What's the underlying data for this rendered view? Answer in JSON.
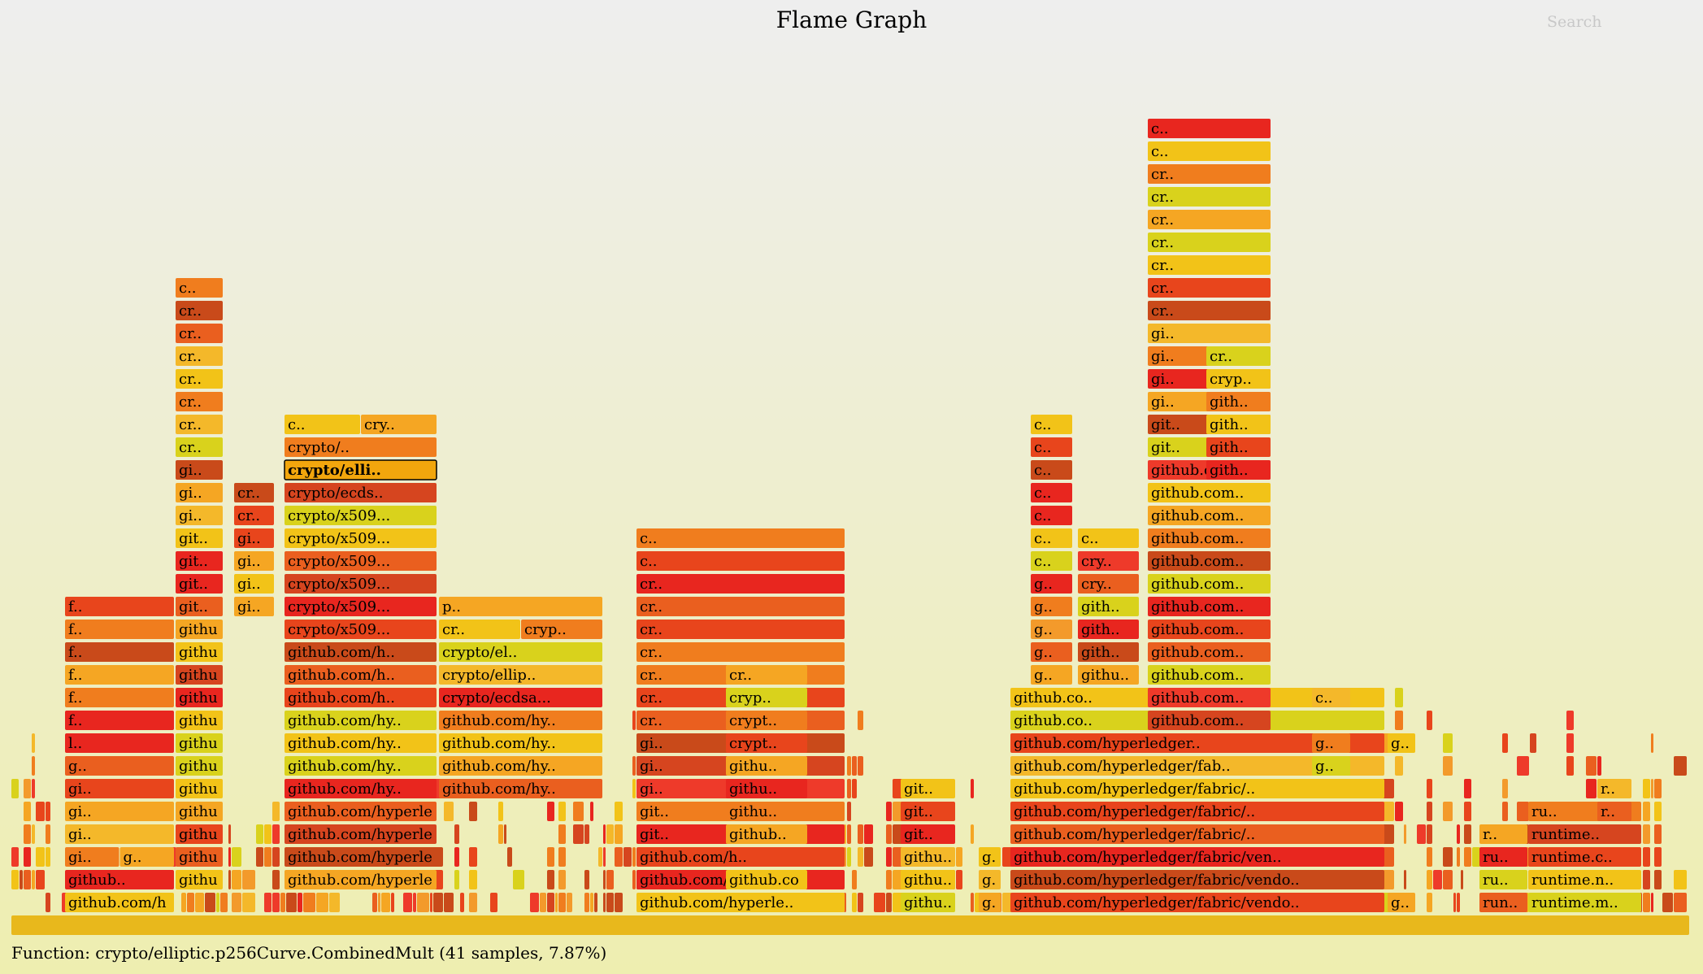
{
  "title": "Flame Graph",
  "search_label": "Search",
  "details": "Function: crypto/elliptic.p256Curve.CombinedMult (41 samples, 7.87%)",
  "chart_data": {
    "type": "flame",
    "palette": [
      "#e8451c",
      "#f07d1e",
      "#f5a623",
      "#f2c318",
      "#d9d21c",
      "#e8261f",
      "#d6451f",
      "#ea5f1f",
      "#f4b82a",
      "#c94a1a",
      "#ee3a2a",
      "#f39a2b"
    ],
    "highlight_color": "#f2a60d",
    "root": {
      "label": "",
      "color": "#e8b81c"
    },
    "frames": [
      {
        "label": "github.com/hyperledger/fabric/core/chaincode/shim.(*H..",
        "col": 0,
        "row": 0,
        "c": 3
      },
      {
        "label": "github..",
        "col": 0,
        "row": 1,
        "c": 5
      },
      {
        "label": "gi..",
        "col": 0,
        "row": 2,
        "c": 1
      },
      {
        "label": "g..",
        "col": 0,
        "row": 2,
        "c": 2
      },
      {
        "label": "gi..",
        "col": 0,
        "row": 3,
        "c": 8
      },
      {
        "label": "gi..",
        "col": 0,
        "row": 4,
        "c": 2
      },
      {
        "label": "gi..",
        "col": 0,
        "row": 5,
        "c": 0
      },
      {
        "label": "g..",
        "col": 0,
        "row": 6,
        "c": 7
      },
      {
        "label": "l..",
        "col": 0,
        "row": 7,
        "c": 5
      },
      {
        "label": "f..",
        "col": 0,
        "row": 8,
        "c": 5
      },
      {
        "label": "f..",
        "col": 0,
        "row": 9,
        "c": 1
      },
      {
        "label": "f..",
        "col": 0,
        "row": 10,
        "c": 2
      },
      {
        "label": "f..",
        "col": 0,
        "row": 11,
        "c": 9
      },
      {
        "label": "f..",
        "col": 0,
        "row": 12,
        "c": 1
      },
      {
        "label": "f..",
        "col": 0,
        "row": 13,
        "c": 0
      },
      {
        "label": "github.c..",
        "col": 1,
        "row": 1,
        "c": 3
      },
      {
        "label": "github.c..",
        "col": 1,
        "row": 2,
        "c": 7
      },
      {
        "label": "github.c..",
        "col": 1,
        "row": 3,
        "c": 0
      },
      {
        "label": "github.c..",
        "col": 1,
        "row": 4,
        "c": 2
      },
      {
        "label": "github.c..",
        "col": 1,
        "row": 5,
        "c": 3
      },
      {
        "label": "github.c..",
        "col": 1,
        "row": 6,
        "c": 4
      },
      {
        "label": "github.c..",
        "col": 1,
        "row": 7,
        "c": 4
      },
      {
        "label": "github.c..",
        "col": 1,
        "row": 8,
        "c": 3
      },
      {
        "label": "github.c..",
        "col": 1,
        "row": 9,
        "c": 5
      },
      {
        "label": "github.c..",
        "col": 1,
        "row": 10,
        "c": 6
      },
      {
        "label": "github.c..",
        "col": 1,
        "row": 11,
        "c": 3
      },
      {
        "label": "github.c..",
        "col": 1,
        "row": 12,
        "c": 2
      },
      {
        "label": "git..",
        "col": 1,
        "row": 13,
        "c": 7
      },
      {
        "label": "git..",
        "col": 1,
        "row": 14,
        "c": 5
      },
      {
        "label": "git..",
        "col": 1,
        "row": 15,
        "c": 5
      },
      {
        "label": "git..",
        "col": 1,
        "row": 16,
        "c": 3
      },
      {
        "label": "gi..",
        "col": 1,
        "row": 17,
        "c": 8
      },
      {
        "label": "gi..",
        "col": 1,
        "row": 18,
        "c": 2
      },
      {
        "label": "gi..",
        "col": 1,
        "row": 19,
        "c": 9
      },
      {
        "label": "cr..",
        "col": 1,
        "row": 20,
        "c": 4
      },
      {
        "label": "cr..",
        "col": 1,
        "row": 21,
        "c": 8
      },
      {
        "label": "cr..",
        "col": 1,
        "row": 22,
        "c": 1
      },
      {
        "label": "cr..",
        "col": 1,
        "row": 23,
        "c": 3
      },
      {
        "label": "cr..",
        "col": 1,
        "row": 24,
        "c": 8
      },
      {
        "label": "cr..",
        "col": 1,
        "row": 25,
        "c": 7
      },
      {
        "label": "cr..",
        "col": 1,
        "row": 26,
        "c": 9
      },
      {
        "label": "c..",
        "col": 1,
        "row": 27,
        "c": 1
      },
      {
        "label": "gi..",
        "col": 2,
        "row": 13,
        "c": 2
      },
      {
        "label": "gi..",
        "col": 2,
        "row": 14,
        "c": 3
      },
      {
        "label": "gi..",
        "col": 2,
        "row": 15,
        "c": 2
      },
      {
        "label": "gi..",
        "col": 2,
        "row": 16,
        "c": 0
      },
      {
        "label": "cr..",
        "col": 2,
        "row": 17,
        "c": 0
      },
      {
        "label": "cr..",
        "col": 2,
        "row": 18,
        "c": 9
      },
      {
        "label": "github.com/hyperledger/fabric/c..",
        "col": 3,
        "row": 1,
        "c": 2
      },
      {
        "label": "github.com/hyperledger/fabric/..",
        "col": 3,
        "row": 2,
        "c": 9
      },
      {
        "label": "github.com/hyperledger/fabric/..",
        "col": 3,
        "row": 3,
        "c": 6
      },
      {
        "label": "github.com/hyperledger/fabric/..",
        "col": 3,
        "row": 4,
        "c": 7
      },
      {
        "label": "github.com/hy..",
        "col": 3,
        "row": 5,
        "c": 5
      },
      {
        "label": "github.com/hy..",
        "col": 3,
        "row": 6,
        "c": 4
      },
      {
        "label": "github.com/hy..",
        "col": 3,
        "row": 7,
        "c": 3
      },
      {
        "label": "github.com/hy..",
        "col": 3,
        "row": 8,
        "c": 4
      },
      {
        "label": "github.com/h..",
        "col": 3,
        "row": 9,
        "c": 0
      },
      {
        "label": "github.com/h..",
        "col": 3,
        "row": 10,
        "c": 7
      },
      {
        "label": "github.com/h..",
        "col": 3,
        "row": 11,
        "c": 9
      },
      {
        "label": "crypto/x509...",
        "col": 3,
        "row": 12,
        "c": 0
      },
      {
        "label": "crypto/x509...",
        "col": 3,
        "row": 13,
        "c": 5
      },
      {
        "label": "crypto/x509...",
        "col": 3,
        "row": 14,
        "c": 6
      },
      {
        "label": "crypto/x509...",
        "col": 3,
        "row": 15,
        "c": 7
      },
      {
        "label": "crypto/x509...",
        "col": 3,
        "row": 16,
        "c": 3
      },
      {
        "label": "crypto/x509...",
        "col": 3,
        "row": 17,
        "c": 4
      },
      {
        "label": "crypto/ecds..",
        "col": 3,
        "row": 18,
        "c": 6
      },
      {
        "label": "crypto/elli..",
        "col": 3,
        "row": 19,
        "c": 2,
        "highlight": true
      },
      {
        "label": "crypto/..",
        "col": 3,
        "row": 20,
        "c": 1
      },
      {
        "label": "c..",
        "col": 3,
        "row": 21,
        "c": 3
      },
      {
        "label": "cry..",
        "col": 3,
        "row": 21,
        "c": 2
      },
      {
        "label": "github.com/hy..",
        "col": 4,
        "row": 5,
        "c": 7
      },
      {
        "label": "github.com/hy..",
        "col": 4,
        "row": 6,
        "c": 2
      },
      {
        "label": "github.com/hy..",
        "col": 4,
        "row": 7,
        "c": 3
      },
      {
        "label": "github.com/hy..",
        "col": 4,
        "row": 8,
        "c": 1
      },
      {
        "label": "crypto/ecdsa...",
        "col": 4,
        "row": 9,
        "c": 5
      },
      {
        "label": "crypto/ellip..",
        "col": 4,
        "row": 10,
        "c": 8
      },
      {
        "label": "crypto/el..",
        "col": 4,
        "row": 11,
        "c": 4
      },
      {
        "label": "cr..",
        "col": 4,
        "row": 12,
        "c": 3
      },
      {
        "label": "cryp..",
        "col": 4,
        "row": 12,
        "c": 1
      },
      {
        "label": "p..",
        "col": 4,
        "row": 13,
        "c": 2
      },
      {
        "label": "github.com/hyperle..",
        "col": 5,
        "row": 0,
        "c": 3
      },
      {
        "label": "github.com/hyperle..",
        "col": 5,
        "row": 1,
        "c": 5
      },
      {
        "label": "github.com/h..",
        "col": 5,
        "row": 2,
        "c": 0
      },
      {
        "label": "git..",
        "col": 5,
        "row": 3,
        "c": 5
      },
      {
        "label": "git..",
        "col": 5,
        "row": 4,
        "c": 1
      },
      {
        "label": "gi..",
        "col": 5,
        "row": 5,
        "c": 10
      },
      {
        "label": "gi..",
        "col": 5,
        "row": 6,
        "c": 6
      },
      {
        "label": "gi..",
        "col": 5,
        "row": 7,
        "c": 9
      },
      {
        "label": "cr..",
        "col": 5,
        "row": 8,
        "c": 7
      },
      {
        "label": "cr..",
        "col": 5,
        "row": 9,
        "c": 0
      },
      {
        "label": "cr..",
        "col": 5,
        "row": 10,
        "c": 1
      },
      {
        "label": "cr..",
        "col": 5,
        "row": 11,
        "c": 1
      },
      {
        "label": "cr..",
        "col": 5,
        "row": 12,
        "c": 0
      },
      {
        "label": "cr..",
        "col": 5,
        "row": 13,
        "c": 7
      },
      {
        "label": "cr..",
        "col": 5,
        "row": 14,
        "c": 5
      },
      {
        "label": "c..",
        "col": 5,
        "row": 15,
        "c": 0
      },
      {
        "label": "c..",
        "col": 5,
        "row": 16,
        "c": 1
      },
      {
        "label": "github.com/hyp..",
        "col": 6,
        "row": 1,
        "c": 3
      },
      {
        "label": "github..",
        "col": 6,
        "row": 3,
        "c": 2
      },
      {
        "label": "githu..",
        "col": 6,
        "row": 4,
        "c": 1
      },
      {
        "label": "githu..",
        "col": 6,
        "row": 5,
        "c": 5
      },
      {
        "label": "githu..",
        "col": 6,
        "row": 6,
        "c": 2
      },
      {
        "label": "crypt..",
        "col": 6,
        "row": 7,
        "c": 0
      },
      {
        "label": "crypt..",
        "col": 6,
        "row": 8,
        "c": 1
      },
      {
        "label": "cryp..",
        "col": 6,
        "row": 9,
        "c": 4
      },
      {
        "label": "cr..",
        "col": 6,
        "row": 10,
        "c": 2
      },
      {
        "label": "githu..",
        "col": 7,
        "row": 0,
        "c": 4
      },
      {
        "label": "githu..",
        "col": 7,
        "row": 1,
        "c": 3
      },
      {
        "label": "githu..",
        "col": 7,
        "row": 2,
        "c": 8
      },
      {
        "label": "git..",
        "col": 7,
        "row": 3,
        "c": 5
      },
      {
        "label": "git..",
        "col": 7,
        "row": 4,
        "c": 0
      },
      {
        "label": "git..",
        "col": 7,
        "row": 5,
        "c": 3
      },
      {
        "label": "g..",
        "col": 8,
        "row": 0,
        "c": 2
      },
      {
        "label": "g..",
        "col": 8,
        "row": 1,
        "c": 8
      },
      {
        "label": "g..",
        "col": 8,
        "row": 2,
        "c": 3
      },
      {
        "label": "github.com/hyperledger/fabric/vendo..",
        "col": 9,
        "row": 0,
        "c": 0
      },
      {
        "label": "github.com/hyperledger/fabric/vendo..",
        "col": 9,
        "row": 1,
        "c": 9
      },
      {
        "label": "github.com/hyperledger/fabric/ven..",
        "col": 9,
        "row": 2,
        "c": 5
      },
      {
        "label": "github.com/hyperledger/fabric/..",
        "col": 9,
        "row": 3,
        "c": 7
      },
      {
        "label": "github.com/hyperledger/fabric/..",
        "col": 9,
        "row": 4,
        "c": 0
      },
      {
        "label": "github.com/hyperledger/fabric/..",
        "col": 9,
        "row": 5,
        "c": 3
      },
      {
        "label": "github.com/hyperledger/fab..",
        "col": 9,
        "row": 6,
        "c": 8
      },
      {
        "label": "github.com/hyperledger..",
        "col": 9,
        "row": 7,
        "c": 0
      },
      {
        "label": "github.co..",
        "col": 9,
        "row": 8,
        "c": 4
      },
      {
        "label": "github.co..",
        "col": 9,
        "row": 9,
        "c": 3
      },
      {
        "label": "g..",
        "col": 10,
        "row": 10,
        "c": 2
      },
      {
        "label": "g..",
        "col": 10,
        "row": 11,
        "c": 7
      },
      {
        "label": "g..",
        "col": 10,
        "row": 12,
        "c": 11
      },
      {
        "label": "g..",
        "col": 10,
        "row": 13,
        "c": 1
      },
      {
        "label": "g..",
        "col": 10,
        "row": 14,
        "c": 5
      },
      {
        "label": "c..",
        "col": 10,
        "row": 15,
        "c": 4
      },
      {
        "label": "c..",
        "col": 10,
        "row": 16,
        "c": 3
      },
      {
        "label": "c..",
        "col": 10,
        "row": 17,
        "c": 5
      },
      {
        "label": "c..",
        "col": 10,
        "row": 18,
        "c": 5
      },
      {
        "label": "c..",
        "col": 10,
        "row": 19,
        "c": 9
      },
      {
        "label": "c..",
        "col": 10,
        "row": 20,
        "c": 0
      },
      {
        "label": "c..",
        "col": 10,
        "row": 21,
        "c": 3
      },
      {
        "label": "githu..",
        "col": 11,
        "row": 10,
        "c": 2
      },
      {
        "label": "gith..",
        "col": 11,
        "row": 11,
        "c": 9
      },
      {
        "label": "gith..",
        "col": 11,
        "row": 12,
        "c": 5
      },
      {
        "label": "gith..",
        "col": 11,
        "row": 13,
        "c": 4
      },
      {
        "label": "cry..",
        "col": 11,
        "row": 14,
        "c": 7
      },
      {
        "label": "cry..",
        "col": 11,
        "row": 15,
        "c": 10
      },
      {
        "label": "c..",
        "col": 11,
        "row": 16,
        "c": 3
      },
      {
        "label": "github.com..",
        "col": 12,
        "row": 8,
        "c": 6
      },
      {
        "label": "github.com..",
        "col": 12,
        "row": 9,
        "c": 10
      },
      {
        "label": "github.com..",
        "col": 12,
        "row": 10,
        "c": 4
      },
      {
        "label": "github.com..",
        "col": 12,
        "row": 11,
        "c": 7
      },
      {
        "label": "github.com..",
        "col": 12,
        "row": 12,
        "c": 0
      },
      {
        "label": "github.com..",
        "col": 12,
        "row": 13,
        "c": 5
      },
      {
        "label": "github.com..",
        "col": 12,
        "row": 14,
        "c": 4
      },
      {
        "label": "github.com..",
        "col": 12,
        "row": 15,
        "c": 9
      },
      {
        "label": "github.com..",
        "col": 12,
        "row": 16,
        "c": 1
      },
      {
        "label": "github.com..",
        "col": 12,
        "row": 17,
        "c": 2
      },
      {
        "label": "github.com..",
        "col": 12,
        "row": 18,
        "c": 3
      },
      {
        "label": "github.com..",
        "col": 12,
        "row": 19,
        "c": 10
      },
      {
        "label": "git..",
        "col": 12,
        "row": 20,
        "c": 4
      },
      {
        "label": "git..",
        "col": 12,
        "row": 21,
        "c": 9
      },
      {
        "label": "gi..",
        "col": 12,
        "row": 22,
        "c": 2
      },
      {
        "label": "gi..",
        "col": 12,
        "row": 23,
        "c": 5
      },
      {
        "label": "gi..",
        "col": 12,
        "row": 24,
        "c": 1
      },
      {
        "label": "gi..",
        "col": 12,
        "row": 25,
        "c": 8
      },
      {
        "label": "cr..",
        "col": 12,
        "row": 26,
        "c": 9
      },
      {
        "label": "cr..",
        "col": 12,
        "row": 27,
        "c": 0
      },
      {
        "label": "cr..",
        "col": 12,
        "row": 28,
        "c": 3
      },
      {
        "label": "cr..",
        "col": 12,
        "row": 29,
        "c": 4
      },
      {
        "label": "cr..",
        "col": 12,
        "row": 30,
        "c": 2
      },
      {
        "label": "cr..",
        "col": 12,
        "row": 31,
        "c": 4
      },
      {
        "label": "cr..",
        "col": 12,
        "row": 32,
        "c": 1
      },
      {
        "label": "c..",
        "col": 12,
        "row": 33,
        "c": 3
      },
      {
        "label": "c..",
        "col": 12,
        "row": 34,
        "c": 5
      },
      {
        "label": "gith..",
        "col": 13,
        "row": 19,
        "c": 5
      },
      {
        "label": "gith..",
        "col": 13,
        "row": 20,
        "c": 0
      },
      {
        "label": "gith..",
        "col": 13,
        "row": 21,
        "c": 3
      },
      {
        "label": "gith..",
        "col": 13,
        "row": 22,
        "c": 1
      },
      {
        "label": "cryp..",
        "col": 13,
        "row": 23,
        "c": 3
      },
      {
        "label": "cr..",
        "col": 13,
        "row": 24,
        "c": 4
      },
      {
        "label": "g..",
        "col": 14,
        "row": 0,
        "c": 2
      },
      {
        "label": "g..",
        "col": 14,
        "row": 7,
        "c": 3
      },
      {
        "label": "c..",
        "col": 15,
        "row": 9,
        "c": 8
      },
      {
        "label": "g..",
        "col": 15,
        "row": 7,
        "c": 1
      },
      {
        "label": "g..",
        "col": 15,
        "row": 6,
        "c": 4
      },
      {
        "label": "run..",
        "col": 16,
        "row": 0,
        "c": 7
      },
      {
        "label": "ru..",
        "col": 16,
        "row": 1,
        "c": 4
      },
      {
        "label": "ru..",
        "col": 16,
        "row": 2,
        "c": 5
      },
      {
        "label": "r..",
        "col": 16,
        "row": 3,
        "c": 2
      },
      {
        "label": "runtime.m..",
        "col": 17,
        "row": 0,
        "c": 4
      },
      {
        "label": "runtime.n..",
        "col": 17,
        "row": 1,
        "c": 3
      },
      {
        "label": "runtime.c..",
        "col": 17,
        "row": 2,
        "c": 0
      },
      {
        "label": "runtime..",
        "col": 17,
        "row": 3,
        "c": 6
      },
      {
        "label": "ru..",
        "col": 17,
        "row": 4,
        "c": 1
      },
      {
        "label": "r..",
        "col": 18,
        "row": 4,
        "c": 7
      },
      {
        "label": "r..",
        "col": 18,
        "row": 5,
        "c": 8
      }
    ]
  }
}
